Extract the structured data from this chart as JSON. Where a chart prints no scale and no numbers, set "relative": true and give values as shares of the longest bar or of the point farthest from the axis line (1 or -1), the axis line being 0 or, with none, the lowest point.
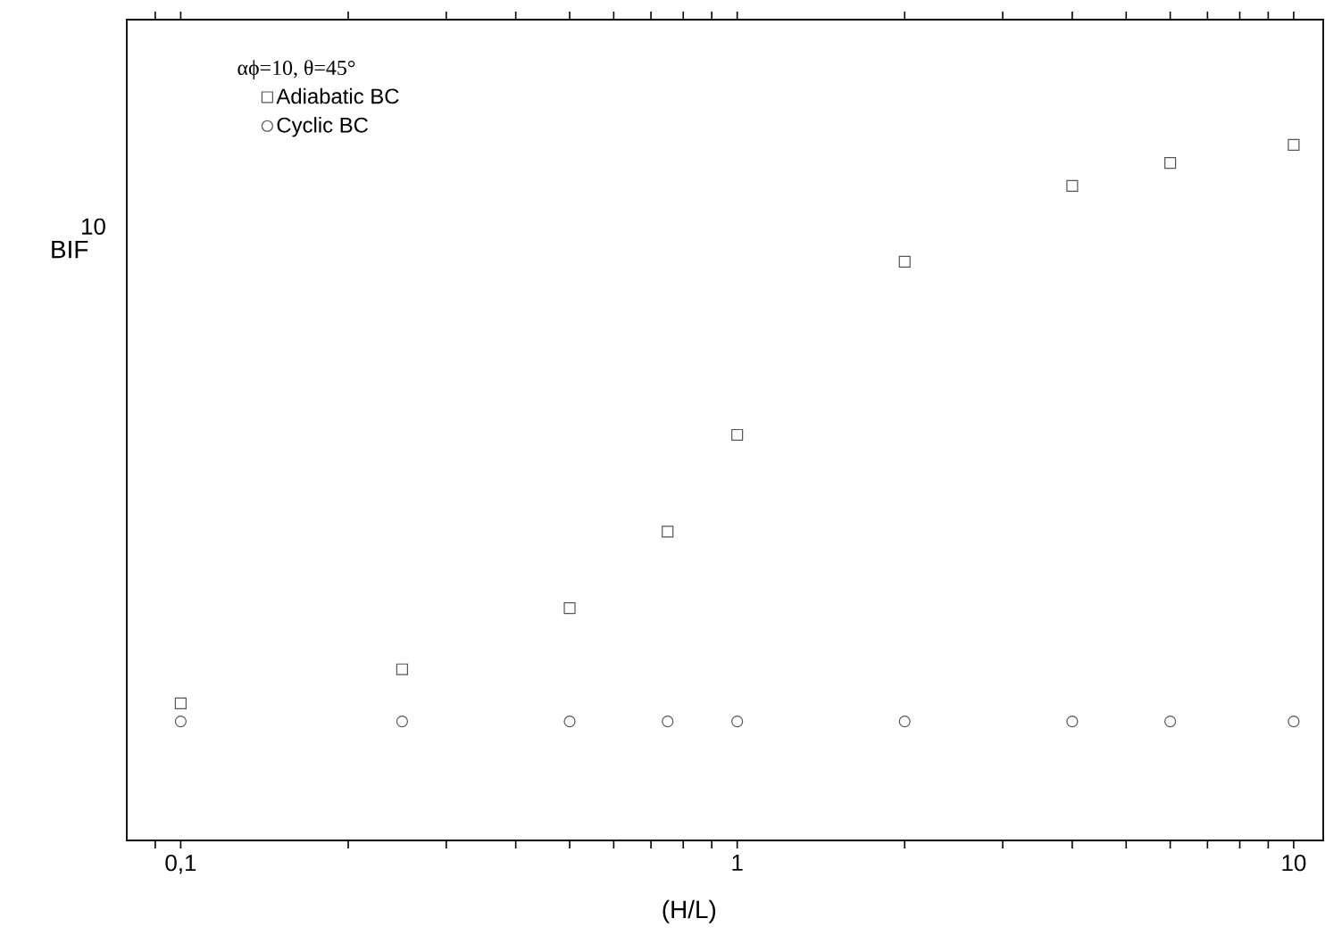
{
  "chart_data": {
    "type": "scatter",
    "xlabel": "(H/L)",
    "ylabel": "BIF",
    "legend_title": "αϕ=10, θ=45°",
    "log": "x",
    "legend": "top left",
    "grid": false,
    "relative": true,
    "annotations": [
      "10"
    ],
    "xlim": [
      0.08,
      11.3
    ],
    "xticks": [
      {
        "value": 0.09,
        "label": null
      },
      {
        "value": 0.1,
        "label": "0,1"
      },
      {
        "value": 0.2,
        "label": null
      },
      {
        "value": 0.3,
        "label": null
      },
      {
        "value": 0.4,
        "label": null
      },
      {
        "value": 0.5,
        "label": null
      },
      {
        "value": 0.6,
        "label": null
      },
      {
        "value": 0.7,
        "label": null
      },
      {
        "value": 0.8,
        "label": null
      },
      {
        "value": 0.9,
        "label": null
      },
      1,
      {
        "value": 2,
        "label": null
      },
      {
        "value": 3,
        "label": null
      },
      {
        "value": 4,
        "label": null
      },
      {
        "value": 5,
        "label": null
      },
      {
        "value": 6,
        "label": null
      },
      {
        "value": 7,
        "label": null
      },
      {
        "value": 8,
        "label": null
      },
      {
        "value": 9,
        "label": null
      },
      10
    ],
    "x": [
      0.1,
      0.25,
      0.5,
      0.75,
      1,
      2,
      4,
      6,
      10
    ],
    "series": [
      {
        "name": "Adiabatic BC",
        "color": "#555555",
        "marker": "square",
        "values": [
          0.197,
          0.246,
          0.334,
          0.444,
          0.583,
          0.832,
          0.941,
          0.974,
          1
        ]
      },
      {
        "name": "Cyclic BC",
        "color": "#555555",
        "marker": "circle",
        "values": [
          0.171,
          0.171,
          0.171,
          0.171,
          0.171,
          0.171,
          0.171,
          0.171,
          0.171
        ]
      }
    ]
  }
}
